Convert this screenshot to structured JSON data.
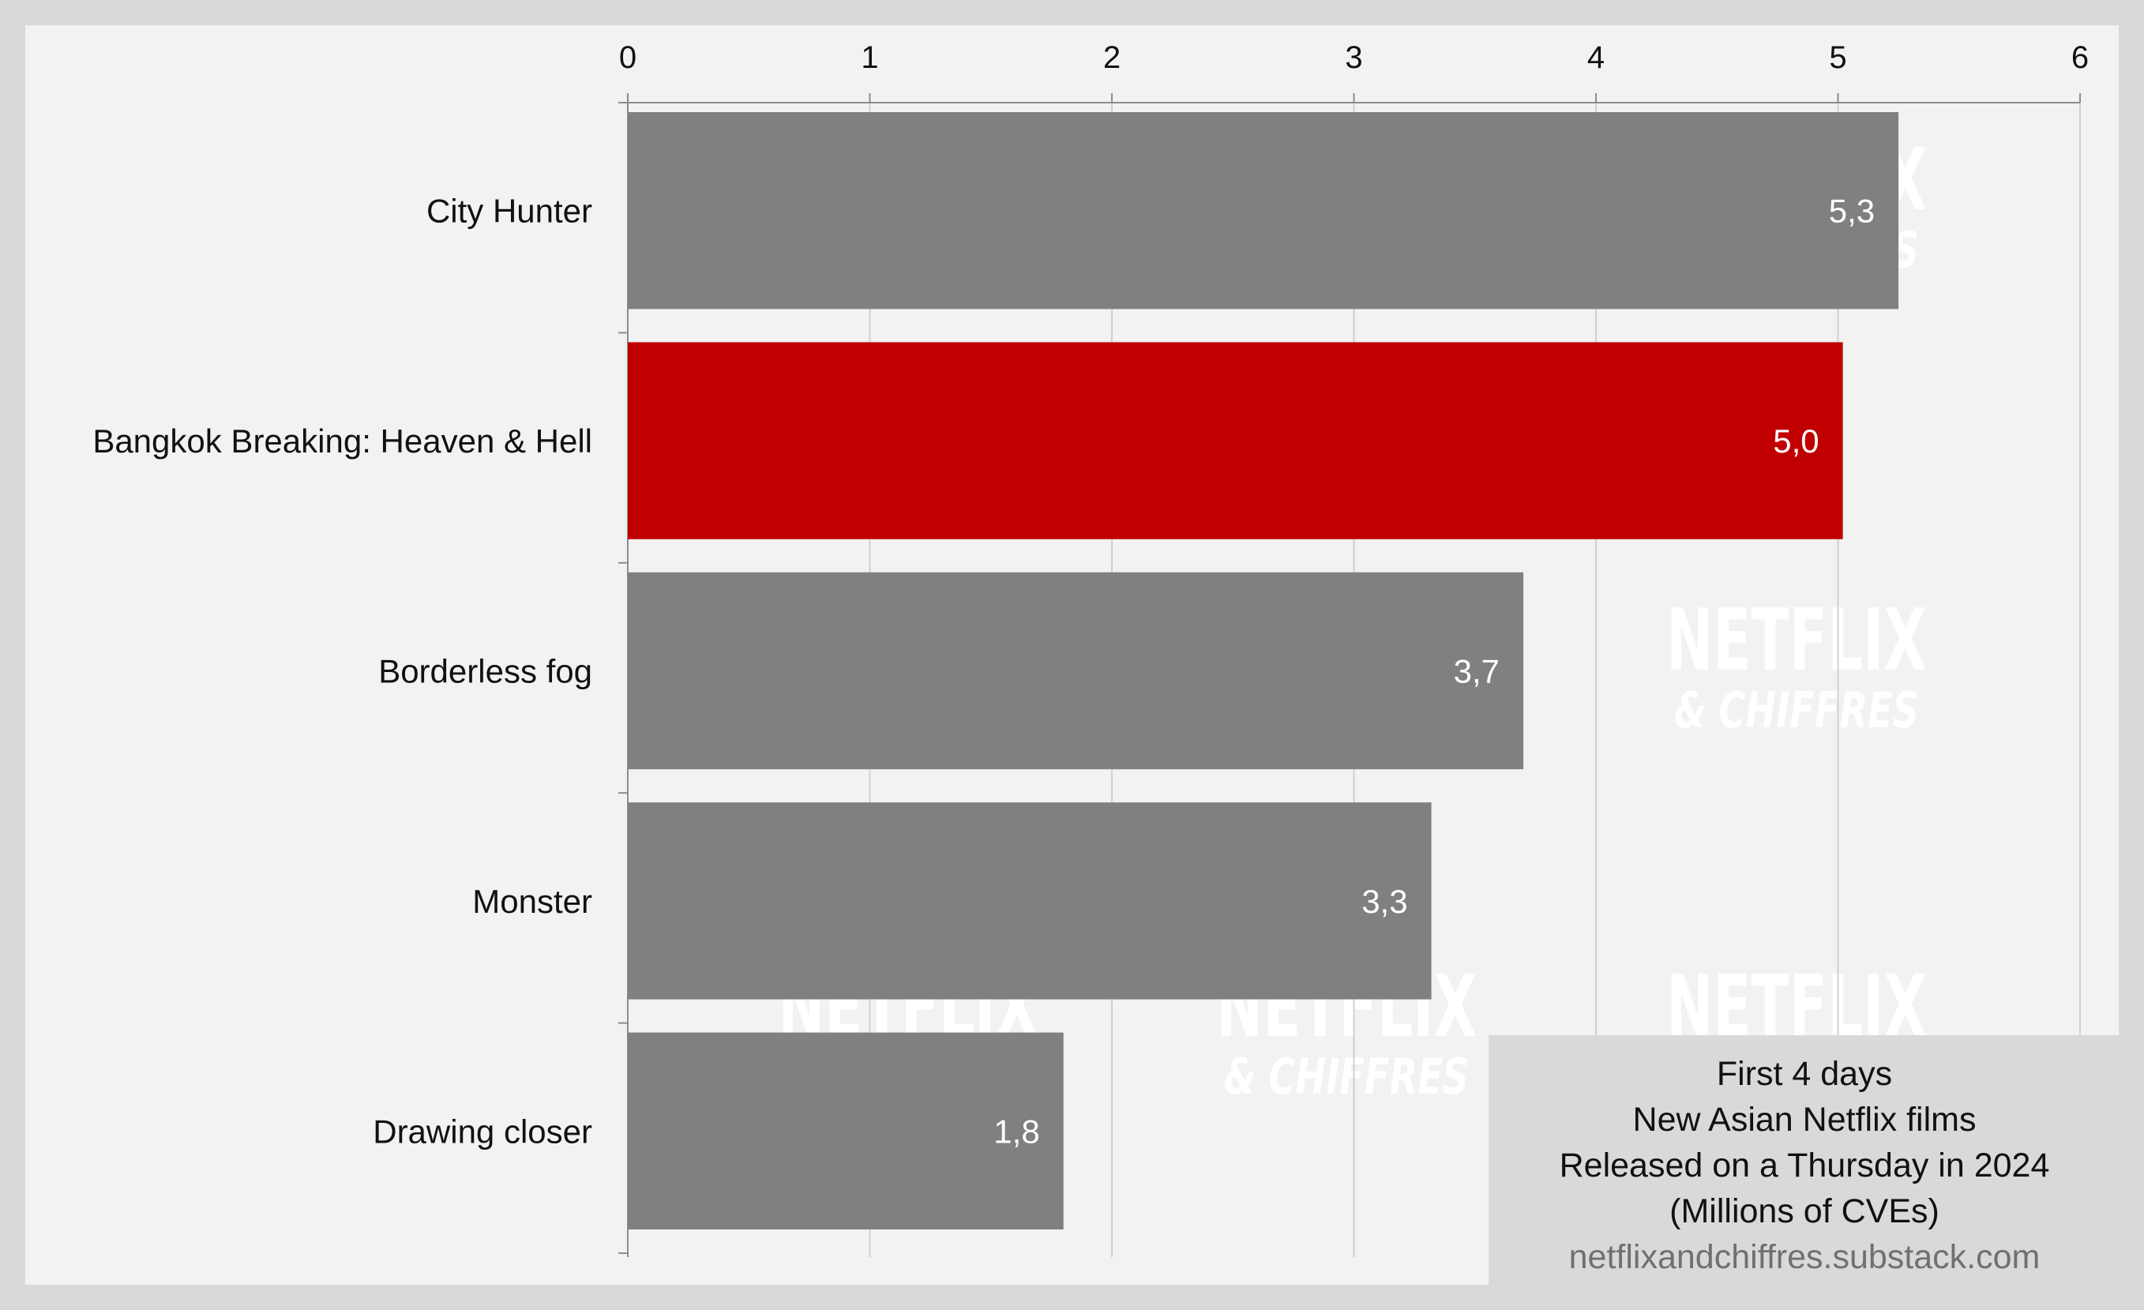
{
  "chart_data": {
    "type": "bar",
    "orientation": "horizontal",
    "categories": [
      "City Hunter",
      "Bangkok Breaking: Heaven & Hell",
      "Borderless fog",
      "Monster",
      "Drawing closer"
    ],
    "values": [
      5.25,
      5.02,
      3.7,
      3.32,
      1.8
    ],
    "value_labels": [
      "5,3",
      "5,0",
      "3,7",
      "3,3",
      "1,8"
    ],
    "xlim": [
      0,
      6
    ],
    "x_ticks": [
      "0",
      "1",
      "2",
      "3",
      "4",
      "5",
      "6"
    ],
    "x_axis_position": "top",
    "grid": "vertical",
    "bar_colors": [
      "#808080",
      "#c00000",
      "#808080",
      "#808080",
      "#808080"
    ],
    "highlight_category": "Bangkok Breaking: Heaven & Hell",
    "background_color": "#f2f2f2",
    "frame_color": "#d9d9d9"
  },
  "caption": {
    "lines": [
      "First 4 days",
      "New Asian Netflix films",
      "Released on a Thursday in 2024",
      "(Millions of CVEs)"
    ],
    "source": "netflixandchiffres.substack.com"
  },
  "watermark": {
    "big": "NETFLIX",
    "small": "& CHIFFRES"
  }
}
